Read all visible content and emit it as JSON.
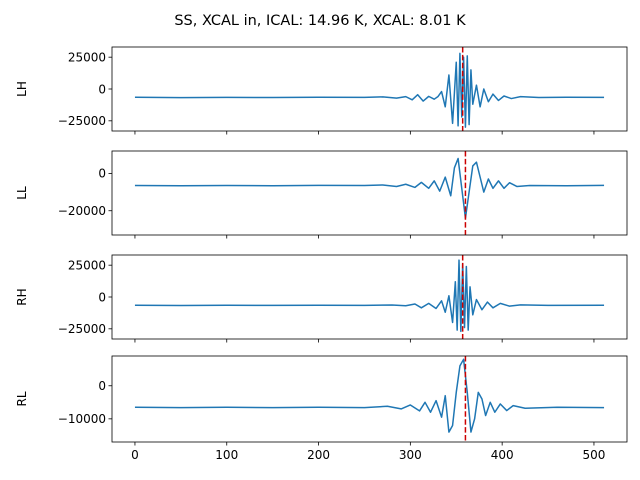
{
  "title": "SS, XCAL in, ICAL: 14.96 K, XCAL: 8.01 K",
  "colors": {
    "series": "#1f77b4",
    "marker": "#cc0000"
  },
  "chart_data": [
    {
      "type": "line",
      "ylabel": "LH",
      "xlim": [
        -25,
        536
      ],
      "ylim": [
        -33000,
        33000
      ],
      "xticks": [
        0,
        100,
        200,
        300,
        400,
        500
      ],
      "show_x_tick_labels": false,
      "yticks": [
        25000,
        0,
        -25000
      ],
      "ytick_labels": [
        "25000",
        "0",
        "−25000"
      ],
      "vline_x": 357,
      "baseline": -6500,
      "points": [
        [
          0,
          -6500
        ],
        [
          50,
          -6800
        ],
        [
          100,
          -6600
        ],
        [
          150,
          -6700
        ],
        [
          200,
          -6500
        ],
        [
          250,
          -6600
        ],
        [
          270,
          -6200
        ],
        [
          285,
          -7200
        ],
        [
          295,
          -6000
        ],
        [
          302,
          -8500
        ],
        [
          308,
          -4500
        ],
        [
          314,
          -9500
        ],
        [
          320,
          -5800
        ],
        [
          326,
          -8000
        ],
        [
          330,
          -6000
        ],
        [
          334,
          -2000
        ],
        [
          338,
          -14000
        ],
        [
          342,
          11000
        ],
        [
          346,
          -27000
        ],
        [
          350,
          21000
        ],
        [
          352,
          -29000
        ],
        [
          354,
          28000
        ],
        [
          356,
          -22000
        ],
        [
          358,
          25000
        ],
        [
          360,
          -30000
        ],
        [
          362,
          26000
        ],
        [
          364,
          -28000
        ],
        [
          366,
          15000
        ],
        [
          368,
          -12000
        ],
        [
          372,
          3000
        ],
        [
          376,
          -14000
        ],
        [
          380,
          0
        ],
        [
          385,
          -10000
        ],
        [
          390,
          -4000
        ],
        [
          396,
          -9000
        ],
        [
          402,
          -5500
        ],
        [
          410,
          -7500
        ],
        [
          420,
          -6000
        ],
        [
          440,
          -6700
        ],
        [
          470,
          -6500
        ],
        [
          511,
          -6600
        ]
      ]
    },
    {
      "type": "line",
      "ylabel": "LL",
      "xlim": [
        -25,
        536
      ],
      "ylim": [
        -33000,
        12000
      ],
      "xticks": [
        0,
        100,
        200,
        300,
        400,
        500
      ],
      "show_x_tick_labels": false,
      "yticks": [
        0,
        -20000
      ],
      "ytick_labels": [
        "0",
        "−20000"
      ],
      "vline_x": 360,
      "baseline": -6500,
      "points": [
        [
          0,
          -6500
        ],
        [
          50,
          -6600
        ],
        [
          100,
          -6500
        ],
        [
          150,
          -6600
        ],
        [
          200,
          -6400
        ],
        [
          250,
          -6500
        ],
        [
          270,
          -6200
        ],
        [
          285,
          -7000
        ],
        [
          295,
          -5800
        ],
        [
          305,
          -7500
        ],
        [
          312,
          -4800
        ],
        [
          320,
          -8000
        ],
        [
          326,
          -4000
        ],
        [
          332,
          -9500
        ],
        [
          338,
          -2000
        ],
        [
          344,
          -12000
        ],
        [
          348,
          3000
        ],
        [
          352,
          8000
        ],
        [
          356,
          -8000
        ],
        [
          360,
          -24000
        ],
        [
          364,
          -10000
        ],
        [
          368,
          4000
        ],
        [
          372,
          6000
        ],
        [
          376,
          -2000
        ],
        [
          380,
          -10000
        ],
        [
          385,
          -3000
        ],
        [
          390,
          -8000
        ],
        [
          396,
          -4000
        ],
        [
          402,
          -8000
        ],
        [
          408,
          -5000
        ],
        [
          416,
          -7000
        ],
        [
          430,
          -6500
        ],
        [
          470,
          -6600
        ],
        [
          511,
          -6400
        ]
      ]
    },
    {
      "type": "line",
      "ylabel": "RH",
      "xlim": [
        -25,
        536
      ],
      "ylim": [
        -33000,
        33000
      ],
      "xticks": [
        0,
        100,
        200,
        300,
        400,
        500
      ],
      "show_x_tick_labels": false,
      "yticks": [
        25000,
        0,
        -25000
      ],
      "ytick_labels": [
        "25000",
        "0",
        "−25000"
      ],
      "vline_x": 357,
      "baseline": -6500,
      "points": [
        [
          0,
          -6500
        ],
        [
          50,
          -6700
        ],
        [
          100,
          -6500
        ],
        [
          150,
          -6600
        ],
        [
          200,
          -6500
        ],
        [
          250,
          -6600
        ],
        [
          280,
          -6300
        ],
        [
          295,
          -6900
        ],
        [
          305,
          -5500
        ],
        [
          312,
          -8500
        ],
        [
          320,
          -5000
        ],
        [
          328,
          -9000
        ],
        [
          334,
          -3000
        ],
        [
          338,
          -12000
        ],
        [
          342,
          1000
        ],
        [
          346,
          -20000
        ],
        [
          349,
          12000
        ],
        [
          351,
          -26000
        ],
        [
          353,
          29000
        ],
        [
          355,
          -27000
        ],
        [
          357,
          26000
        ],
        [
          359,
          -24000
        ],
        [
          361,
          24000
        ],
        [
          363,
          -26000
        ],
        [
          365,
          8000
        ],
        [
          368,
          -14000
        ],
        [
          372,
          -2000
        ],
        [
          378,
          -10000
        ],
        [
          384,
          -4000
        ],
        [
          390,
          -8500
        ],
        [
          398,
          -5000
        ],
        [
          408,
          -7200
        ],
        [
          420,
          -6200
        ],
        [
          450,
          -6600
        ],
        [
          511,
          -6500
        ]
      ]
    },
    {
      "type": "line",
      "ylabel": "RL",
      "xlim": [
        -25,
        536
      ],
      "ylim": [
        -17000,
        9000
      ],
      "xticks": [
        0,
        100,
        200,
        300,
        400,
        500
      ],
      "xtick_labels": [
        "0",
        "100",
        "200",
        "300",
        "400",
        "500"
      ],
      "show_x_tick_labels": true,
      "yticks": [
        0,
        -10000
      ],
      "ytick_labels": [
        "0",
        "−10000"
      ],
      "vline_x": 360,
      "baseline": -6500,
      "points": [
        [
          0,
          -6500
        ],
        [
          50,
          -6600
        ],
        [
          100,
          -6500
        ],
        [
          150,
          -6600
        ],
        [
          200,
          -6500
        ],
        [
          250,
          -6600
        ],
        [
          275,
          -6200
        ],
        [
          290,
          -7000
        ],
        [
          300,
          -5800
        ],
        [
          310,
          -7600
        ],
        [
          316,
          -5000
        ],
        [
          322,
          -8000
        ],
        [
          328,
          -4500
        ],
        [
          334,
          -9500
        ],
        [
          338,
          -3000
        ],
        [
          342,
          -14000
        ],
        [
          346,
          -12000
        ],
        [
          350,
          -2000
        ],
        [
          354,
          6000
        ],
        [
          358,
          8000
        ],
        [
          362,
          -2000
        ],
        [
          366,
          -14000
        ],
        [
          370,
          -10000
        ],
        [
          374,
          -2000
        ],
        [
          378,
          -4000
        ],
        [
          382,
          -9000
        ],
        [
          387,
          -5000
        ],
        [
          392,
          -8000
        ],
        [
          398,
          -5500
        ],
        [
          405,
          -7500
        ],
        [
          412,
          -6000
        ],
        [
          425,
          -6800
        ],
        [
          460,
          -6500
        ],
        [
          511,
          -6600
        ]
      ]
    }
  ]
}
